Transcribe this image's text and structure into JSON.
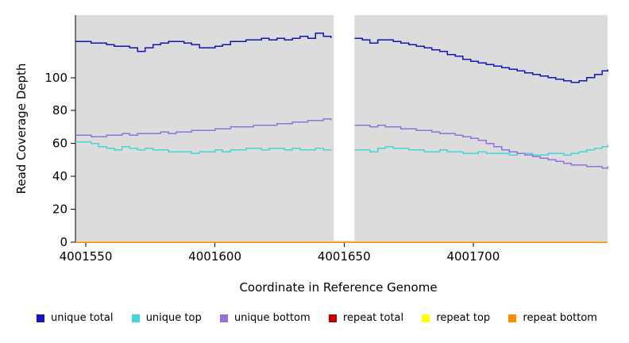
{
  "figure_title": "",
  "axes": {
    "xlabel": "Coordinate in Reference Genome",
    "ylabel": "Read Coverage Depth"
  },
  "chart_data": {
    "type": "line",
    "step": true,
    "title": "",
    "xlabel": "Coordinate in Reference Genome",
    "ylabel": "Read Coverage Depth",
    "xlim": [
      4001546,
      4001752
    ],
    "ylim": [
      0,
      138
    ],
    "x_ticks": [
      4001550,
      4001600,
      4001650,
      4001700
    ],
    "y_ticks": [
      0,
      20,
      40,
      60,
      80,
      100
    ],
    "grid": false,
    "legend_position": "bottom",
    "panel_bg": "#dcdcdc",
    "background": "#ffffff",
    "gap_region": [
      4001646,
      4001654
    ],
    "x": [
      4001546,
      4001549,
      4001552,
      4001555,
      4001558,
      4001561,
      4001564,
      4001567,
      4001570,
      4001573,
      4001576,
      4001579,
      4001582,
      4001585,
      4001588,
      4001591,
      4001594,
      4001597,
      4001600,
      4001603,
      4001606,
      4001609,
      4001612,
      4001615,
      4001618,
      4001621,
      4001624,
      4001627,
      4001630,
      4001633,
      4001636,
      4001639,
      4001642,
      4001645,
      4001648,
      4001651,
      4001654,
      4001657,
      4001660,
      4001663,
      4001666,
      4001669,
      4001672,
      4001675,
      4001678,
      4001681,
      4001684,
      4001687,
      4001690,
      4001693,
      4001696,
      4001699,
      4001702,
      4001705,
      4001708,
      4001711,
      4001714,
      4001717,
      4001720,
      4001723,
      4001726,
      4001729,
      4001732,
      4001735,
      4001738,
      4001741,
      4001744,
      4001747,
      4001750,
      4001753
    ],
    "series": [
      {
        "name": "unique total",
        "color": "#1515c0",
        "values": [
          122,
          122,
          121,
          121,
          120,
          119,
          119,
          118,
          116,
          118,
          120,
          121,
          122,
          122,
          121,
          120,
          118,
          118,
          119,
          120,
          122,
          122,
          123,
          123,
          124,
          123,
          124,
          123,
          124,
          125,
          124,
          127,
          125,
          124,
          null,
          null,
          124,
          123,
          121,
          123,
          123,
          122,
          121,
          120,
          119,
          118,
          117,
          116,
          114,
          113,
          111,
          110,
          109,
          108,
          107,
          106,
          105,
          104,
          103,
          102,
          101,
          100,
          99,
          98,
          97,
          98,
          100,
          102,
          104,
          105
        ]
      },
      {
        "name": "unique top",
        "color": "#45d5d5",
        "values": [
          61,
          61,
          60,
          58,
          57,
          56,
          58,
          57,
          56,
          57,
          56,
          56,
          55,
          55,
          55,
          54,
          55,
          55,
          56,
          55,
          56,
          56,
          57,
          57,
          56,
          57,
          57,
          56,
          57,
          56,
          56,
          57,
          56,
          56,
          null,
          null,
          56,
          56,
          55,
          57,
          58,
          57,
          57,
          56,
          56,
          55,
          55,
          56,
          55,
          55,
          54,
          54,
          55,
          54,
          54,
          54,
          53,
          54,
          54,
          53,
          53,
          54,
          54,
          53,
          54,
          55,
          56,
          57,
          58,
          59
        ]
      },
      {
        "name": "unique bottom",
        "color": "#9370DB",
        "values": [
          65,
          65,
          64,
          64,
          65,
          65,
          66,
          65,
          66,
          66,
          66,
          67,
          66,
          67,
          67,
          68,
          68,
          68,
          69,
          69,
          70,
          70,
          70,
          71,
          71,
          71,
          72,
          72,
          73,
          73,
          74,
          74,
          75,
          74,
          null,
          null,
          71,
          71,
          70,
          71,
          70,
          70,
          69,
          69,
          68,
          68,
          67,
          66,
          66,
          65,
          64,
          63,
          62,
          60,
          58,
          56,
          55,
          54,
          53,
          52,
          51,
          50,
          49,
          48,
          47,
          47,
          46,
          46,
          45,
          46
        ]
      },
      {
        "name": "repeat total",
        "color": "#c00000",
        "constant": 0
      },
      {
        "name": "repeat top",
        "color": "#ffff00",
        "constant": 0
      },
      {
        "name": "repeat bottom",
        "color": "#ff8c00",
        "constant": 0
      }
    ]
  }
}
